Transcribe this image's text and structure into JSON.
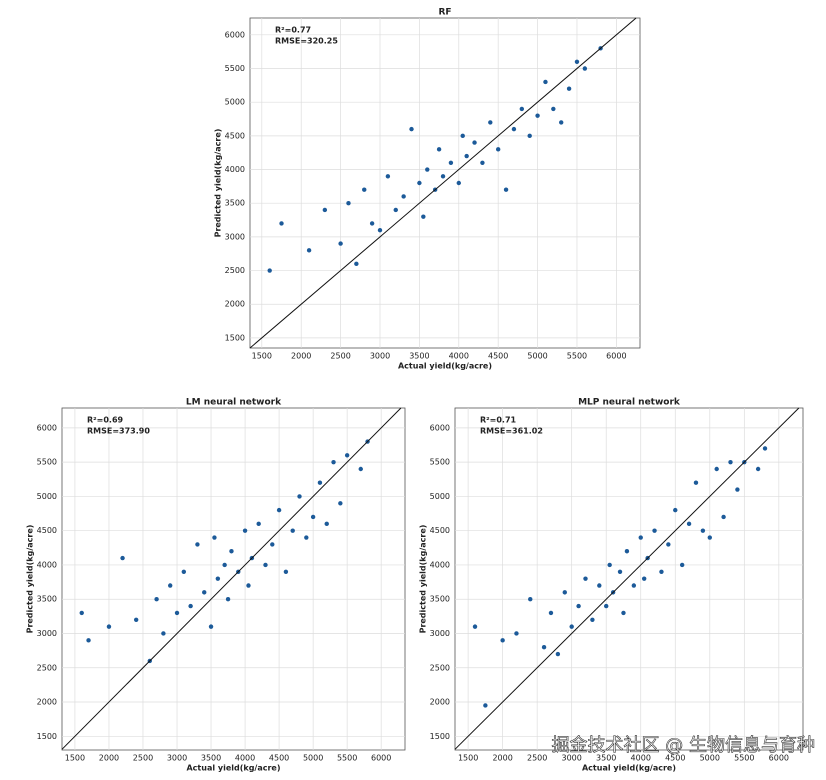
{
  "chart_data": [
    {
      "type": "scatter",
      "title": "RF",
      "x_label": "Actual yield(kg/acre)",
      "y_label": "Predicted yield(kg/acre)",
      "annotations": [
        "R²=0.77",
        "RMSE=320.25"
      ],
      "color": "#1c5a99",
      "x": [
        1600,
        1750,
        2100,
        2300,
        2500,
        2600,
        2700,
        2800,
        2900,
        3000,
        3100,
        3200,
        3300,
        3400,
        3500,
        3550,
        3600,
        3700,
        3750,
        3800,
        3900,
        4000,
        4050,
        4100,
        4200,
        4300,
        4400,
        4500,
        4600,
        4700,
        4800,
        4900,
        5000,
        5100,
        5200,
        5300,
        5400,
        5500,
        5600,
        5800
      ],
      "y": [
        2500,
        3200,
        2800,
        3400,
        2900,
        3500,
        2600,
        3700,
        3200,
        3100,
        3900,
        3400,
        3600,
        4600,
        3800,
        3300,
        4000,
        3700,
        4300,
        3900,
        4100,
        3800,
        4500,
        4200,
        4400,
        4100,
        4700,
        4300,
        3700,
        4600,
        4900,
        4500,
        4800,
        5300,
        4900,
        4700,
        5200,
        5600,
        5500,
        5800
      ],
      "xlim": [
        1350,
        6300
      ],
      "ylim": [
        1350,
        6250
      ],
      "xticks": [
        1500,
        2000,
        2500,
        3000,
        3500,
        4000,
        4500,
        5000,
        5500,
        6000
      ],
      "yticks": [
        1500,
        2000,
        2500,
        3000,
        3500,
        4000,
        4500,
        5000,
        5500,
        6000
      ],
      "grid": true
    },
    {
      "type": "scatter",
      "title": "LM neural network",
      "x_label": "Actual yield(kg/acre)",
      "y_label": "Predicted yield(kg/acre)",
      "annotations": [
        "R²=0.69",
        "RMSE=373.90"
      ],
      "color": "#1c5a99",
      "x": [
        1600,
        1700,
        2000,
        2200,
        2400,
        2600,
        2700,
        2800,
        2900,
        3000,
        3100,
        3200,
        3300,
        3400,
        3500,
        3550,
        3600,
        3700,
        3750,
        3800,
        3900,
        4000,
        4050,
        4100,
        4200,
        4300,
        4400,
        4500,
        4600,
        4700,
        4800,
        4900,
        5000,
        5100,
        5200,
        5300,
        5400,
        5500,
        5700,
        5800
      ],
      "y": [
        3300,
        2900,
        3100,
        4100,
        3200,
        2600,
        3500,
        3000,
        3700,
        3300,
        3900,
        3400,
        4300,
        3600,
        3100,
        4400,
        3800,
        4000,
        3500,
        4200,
        3900,
        4500,
        3700,
        4100,
        4600,
        4000,
        4300,
        4800,
        3900,
        4500,
        5000,
        4400,
        4700,
        5200,
        4600,
        5500,
        4900,
        5600,
        5400,
        5800
      ],
      "xlim": [
        1310,
        6350
      ],
      "ylim": [
        1300,
        6290
      ],
      "xticks": [
        1500,
        2000,
        2500,
        3000,
        3500,
        4000,
        4500,
        5000,
        5500,
        6000
      ],
      "yticks": [
        1500,
        2000,
        2500,
        3000,
        3500,
        4000,
        4500,
        5000,
        5500,
        6000
      ],
      "grid": true
    },
    {
      "type": "scatter",
      "title": "MLP neural network",
      "x_label": "Actual yield(kg/acre)",
      "y_label": "Predicted yield(kg/acre)",
      "annotations": [
        "R²=0.71",
        "RMSE=361.02"
      ],
      "color": "#1c5a99",
      "x": [
        1600,
        1750,
        2000,
        2200,
        2400,
        2600,
        2700,
        2800,
        2900,
        3000,
        3100,
        3200,
        3300,
        3400,
        3500,
        3550,
        3600,
        3700,
        3750,
        3800,
        3900,
        4000,
        4050,
        4100,
        4200,
        4300,
        4400,
        4500,
        4600,
        4700,
        4800,
        4900,
        5000,
        5100,
        5200,
        5300,
        5400,
        5500,
        5700,
        5800
      ],
      "y": [
        3100,
        1950,
        2900,
        3000,
        3500,
        2800,
        3300,
        2700,
        3600,
        3100,
        3400,
        3800,
        3200,
        3700,
        3400,
        4000,
        3600,
        3900,
        3300,
        4200,
        3700,
        4400,
        3800,
        4100,
        4500,
        3900,
        4300,
        4800,
        4000,
        4600,
        5200,
        4500,
        4400,
        5400,
        4700,
        5500,
        5100,
        5500,
        5400,
        5700
      ],
      "xlim": [
        1310,
        6350
      ],
      "ylim": [
        1300,
        6290
      ],
      "xticks": [
        1500,
        2000,
        2500,
        3000,
        3500,
        4000,
        4500,
        5000,
        5500,
        6000
      ],
      "yticks": [
        1500,
        2000,
        2500,
        3000,
        3500,
        4000,
        4500,
        5000,
        5500,
        6000
      ],
      "grid": true
    }
  ],
  "watermark": "掘金技术社区 @ 生物信息与育种"
}
